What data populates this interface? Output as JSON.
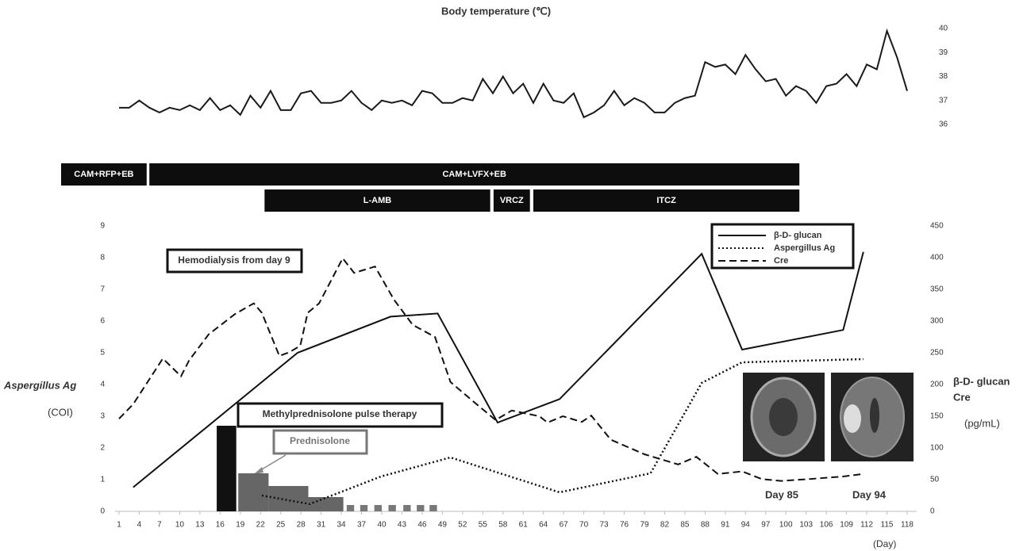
{
  "chart_data": [
    {
      "type": "line",
      "title": "Body temperature (℃)",
      "color": "#1a1a1a",
      "x": [
        1,
        2.5,
        4,
        5.5,
        7,
        8.5,
        10,
        11.5,
        13,
        14.5,
        16,
        17.5,
        19,
        20.5,
        22,
        23.5,
        25,
        26.5,
        28,
        29.5,
        31,
        32.5,
        34,
        35.5,
        37,
        38.5,
        40,
        41.5,
        43,
        44.5,
        46,
        47.5,
        49,
        50.5,
        52,
        53.5,
        55,
        56.5,
        58,
        59.5,
        61,
        62.5,
        64,
        65.5,
        67,
        68.5,
        70,
        71.5,
        73,
        74.5,
        76,
        77.5,
        79,
        80.5,
        82,
        83.5,
        85,
        86.5,
        88,
        89.5,
        91,
        92.5,
        94,
        95.5,
        97,
        98.5,
        100,
        101.5,
        103,
        104.5,
        106,
        107.5,
        109,
        110.5,
        112,
        113.5,
        115,
        116.5,
        118
      ],
      "values": [
        36.7,
        36.7,
        37.0,
        36.7,
        36.5,
        36.7,
        36.6,
        36.8,
        36.6,
        37.1,
        36.6,
        36.8,
        36.4,
        37.2,
        36.7,
        37.4,
        36.6,
        36.6,
        37.3,
        37.4,
        36.9,
        36.9,
        37.0,
        37.4,
        36.9,
        36.6,
        37.0,
        36.9,
        37.0,
        36.8,
        37.4,
        37.3,
        36.9,
        36.9,
        37.1,
        37.0,
        37.9,
        37.3,
        38.0,
        37.3,
        37.7,
        36.9,
        37.7,
        37.0,
        36.9,
        37.3,
        36.3,
        36.5,
        36.8,
        37.4,
        36.8,
        37.1,
        36.9,
        36.5,
        36.5,
        36.9,
        37.1,
        37.2,
        38.6,
        38.4,
        38.5,
        38.1,
        38.9,
        38.3,
        37.8,
        37.9,
        37.2,
        37.6,
        37.4,
        36.9,
        37.6,
        37.7,
        38.1,
        37.6,
        38.5,
        38.3,
        39.9,
        38.8,
        37.4
      ],
      "xlim": [
        1,
        118
      ],
      "ylim": [
        36,
        40
      ],
      "yticks": [
        36,
        37,
        38,
        39,
        40
      ]
    },
    {
      "type": "combo",
      "regimens": [
        [
          {
            "label": "CAM+RFP+EB",
            "start": -7.6,
            "end": 5.1
          },
          {
            "label": "CAM+LVFX+EB",
            "start": 5.5,
            "end": 102
          }
        ],
        [
          {
            "label": "L-AMB",
            "start": 22.6,
            "end": 56.1
          },
          {
            "label": "VRCZ",
            "start": 56.6,
            "end": 62
          },
          {
            "label": "ITCZ",
            "start": 62.5,
            "end": 102
          }
        ]
      ],
      "steroid_bars": [
        {
          "start": 15.5,
          "end": 18.4,
          "value": 2.7,
          "color": "#111111"
        },
        {
          "start": 18.7,
          "end": 23.2,
          "value": 1.2,
          "color": "#666666"
        },
        {
          "start": 23.2,
          "end": 29.1,
          "value": 0.8,
          "color": "#666666"
        },
        {
          "start": 29.1,
          "end": 34.3,
          "value": 0.45,
          "color": "#666666"
        },
        {
          "start": 34.8,
          "end": 35.9,
          "value": 0.2,
          "color": "#777777"
        },
        {
          "start": 36.8,
          "end": 37.9,
          "value": 0.2,
          "color": "#777777"
        },
        {
          "start": 38.9,
          "end": 40.0,
          "value": 0.2,
          "color": "#777777"
        },
        {
          "start": 41.0,
          "end": 42.1,
          "value": 0.2,
          "color": "#777777"
        },
        {
          "start": 43.2,
          "end": 44.3,
          "value": 0.2,
          "color": "#777777"
        },
        {
          "start": 45.2,
          "end": 46.3,
          "value": 0.2,
          "color": "#777777"
        },
        {
          "start": 47.1,
          "end": 48.2,
          "value": 0.2,
          "color": "#777777"
        }
      ],
      "series": [
        {
          "name": "β-D- glucan",
          "axis": "y2",
          "style": "solid",
          "color": "#111111",
          "x": [
            3.1,
            27.5,
            41.3,
            48.3,
            57.2,
            66.4,
            87.5,
            93.5,
            108.5,
            111.5
          ],
          "values": [
            38,
            250,
            307,
            312,
            140,
            177,
            406,
            255,
            286,
            409
          ]
        },
        {
          "name": "Aspergillus Ag",
          "style": "dotted",
          "color": "#111111",
          "x": [
            22.2,
            29.3,
            39.9,
            50.2,
            66.4,
            79.9,
            87.5,
            93.5,
            111.5
          ],
          "values": [
            0.5,
            0.23,
            1.1,
            1.7,
            0.6,
            1.2,
            4.05,
            4.7,
            4.8
          ]
        },
        {
          "name": "Cre",
          "axis": "y2",
          "style": "dashed",
          "color": "#111111",
          "x": [
            1,
            3.1,
            7.5,
            10.2,
            11.4,
            14.3,
            18.2,
            21,
            22.2,
            24.8,
            26.3,
            27.9,
            29,
            30.7,
            34.2,
            35.9,
            39,
            41.8,
            44.6,
            47.9,
            50.2,
            53.4,
            56.9,
            59.3,
            63.4,
            64.6,
            66.9,
            69.7,
            71.1,
            74,
            79,
            84,
            86.7,
            89.9,
            93.5,
            96.4,
            99.3,
            103.5,
            108.5,
            111.5
          ],
          "values": [
            146,
            169,
            241,
            213,
            238,
            279,
            311,
            328,
            313,
            245,
            251,
            261,
            313,
            328,
            399,
            376,
            386,
            334,
            294,
            275,
            204,
            175,
            144,
            159,
            150,
            140,
            150,
            141,
            151,
            113,
            90,
            74,
            86,
            59,
            63,
            51,
            48,
            51,
            55,
            59
          ]
        }
      ],
      "xlim": [
        1,
        118
      ],
      "xticks": [
        1,
        4,
        7,
        10,
        13,
        16,
        19,
        22,
        25,
        28,
        31,
        34,
        37,
        40,
        43,
        46,
        49,
        52,
        55,
        58,
        61,
        64,
        67,
        70,
        73,
        76,
        79,
        82,
        85,
        88,
        91,
        94,
        97,
        100,
        103,
        106,
        109,
        112,
        115,
        118
      ],
      "ylim": [
        0,
        9
      ],
      "yticks": [
        0,
        1,
        2,
        3,
        4,
        5,
        6,
        7,
        8,
        9
      ],
      "y2lim": [
        0,
        450
      ],
      "y2ticks": [
        0,
        50,
        100,
        150,
        200,
        250,
        300,
        350,
        400,
        450
      ],
      "y_label": "Aspergillus Ag",
      "y_unit": "(COI)",
      "y2_label_lines": [
        "β-D- glucan",
        "Cre"
      ],
      "y2_unit": "(pg/mL)",
      "x_unit": "(Day)",
      "annotations": [
        "Hemodialysis from day 9",
        "Methylprednisolone pulse therapy",
        "Prednisolone"
      ],
      "image_captions": [
        "Day 85",
        "Day 94"
      ]
    }
  ]
}
